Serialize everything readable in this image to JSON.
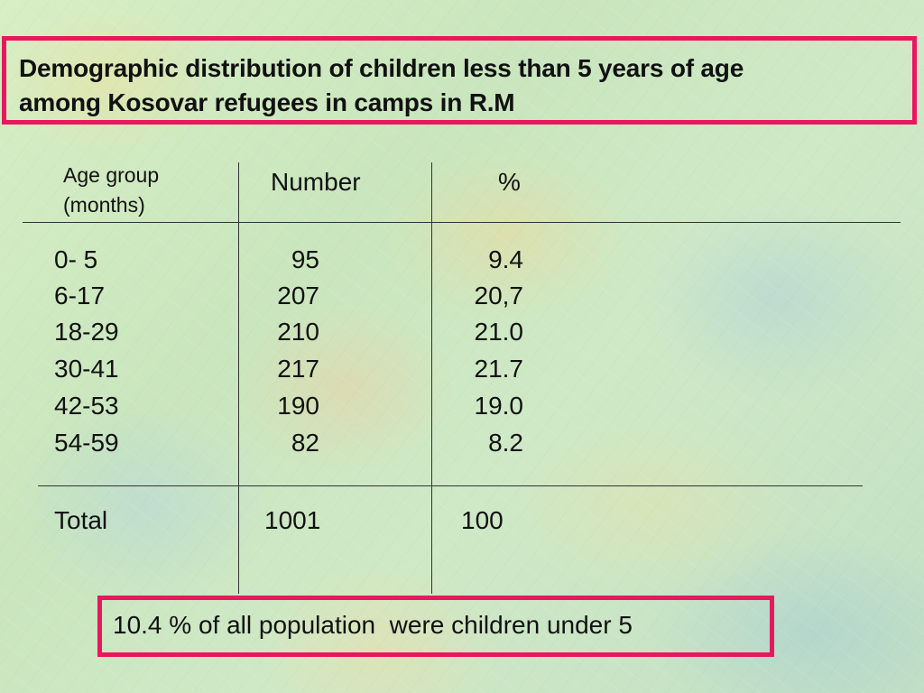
{
  "title": {
    "line1": "Demographic distribution of children less than 5 years of age",
    "line2": "among Kosovar refugees in camps in R.M"
  },
  "table": {
    "headers": {
      "age_line1": "Age group",
      "age_line2": "(months)",
      "number": "Number",
      "percent": "%"
    },
    "rows": [
      {
        "age": "0- 5",
        "number": "95",
        "percent": "9.4"
      },
      {
        "age": "6-17",
        "number": "207",
        "percent": "20,7"
      },
      {
        "age": "18-29",
        "number": "210",
        "percent": "21.0"
      },
      {
        "age": "30-41",
        "number": "217",
        "percent": "21.7"
      },
      {
        "age": "42-53",
        "number": "190",
        "percent": "19.0"
      },
      {
        "age": "54-59",
        "number": "82",
        "percent": "8.2"
      }
    ],
    "total": {
      "label": "Total",
      "number": "1001",
      "percent": "100"
    }
  },
  "note": "10.4 % of all population  were children under 5",
  "colors": {
    "frame": "#e8185f",
    "text": "#111111",
    "background": "#cfe9c6"
  }
}
